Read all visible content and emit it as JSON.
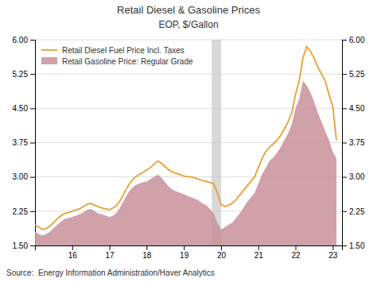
{
  "chart_data": {
    "type": "line",
    "title": "Retail Diesel & Gasoline Prices",
    "subtitle": "EOP, $/Gallon",
    "annotations": [
      "Source:  Energy Information Administration/Haver Analytics"
    ],
    "x": [
      15.0,
      15.1,
      15.2,
      15.3,
      15.4,
      15.5,
      15.6,
      15.7,
      15.8,
      15.9,
      16.0,
      16.1,
      16.2,
      16.3,
      16.4,
      16.5,
      16.6,
      16.7,
      16.8,
      16.9,
      17.0,
      17.1,
      17.2,
      17.3,
      17.4,
      17.5,
      17.6,
      17.7,
      17.8,
      17.9,
      18.0,
      18.1,
      18.2,
      18.3,
      18.4,
      18.5,
      18.6,
      18.7,
      18.8,
      18.9,
      19.0,
      19.1,
      19.2,
      19.3,
      19.4,
      19.5,
      19.6,
      19.7,
      19.8,
      19.9,
      20.0,
      20.1,
      20.2,
      20.3,
      20.4,
      20.5,
      20.6,
      20.7,
      20.8,
      20.9,
      21.0,
      21.1,
      21.2,
      21.3,
      21.4,
      21.5,
      21.6,
      21.7,
      21.8,
      21.9,
      22.0,
      22.1,
      22.2,
      22.3,
      22.4,
      22.5,
      22.6,
      22.7,
      22.8,
      22.9,
      23.0,
      23.1
    ],
    "series": [
      {
        "name": "Retail Diesel Fuel Price Incl. Taxes",
        "type": "line",
        "color": "#E8A030",
        "values": [
          1.95,
          1.9,
          1.85,
          1.87,
          1.92,
          2.0,
          2.08,
          2.15,
          2.2,
          2.22,
          2.25,
          2.28,
          2.3,
          2.35,
          2.4,
          2.42,
          2.38,
          2.35,
          2.32,
          2.3,
          2.28,
          2.32,
          2.38,
          2.5,
          2.65,
          2.8,
          2.92,
          3.0,
          3.05,
          3.1,
          3.15,
          3.2,
          3.28,
          3.35,
          3.3,
          3.22,
          3.15,
          3.1,
          3.08,
          3.05,
          3.02,
          3.0,
          3.0,
          2.98,
          2.95,
          2.92,
          2.9,
          2.88,
          2.85,
          2.65,
          2.4,
          2.35,
          2.38,
          2.42,
          2.5,
          2.6,
          2.7,
          2.8,
          2.9,
          3.0,
          3.2,
          3.4,
          3.55,
          3.65,
          3.72,
          3.8,
          3.9,
          4.05,
          4.2,
          4.4,
          4.8,
          5.1,
          5.6,
          5.85,
          5.75,
          5.6,
          5.4,
          5.25,
          5.1,
          4.8,
          4.55,
          3.8
        ]
      },
      {
        "name": "Retail Gasoline Price: Regular Grade",
        "type": "area",
        "color": "#C8909A",
        "values": [
          1.8,
          1.75,
          1.72,
          1.75,
          1.8,
          1.88,
          1.95,
          2.02,
          2.08,
          2.1,
          2.12,
          2.15,
          2.18,
          2.22,
          2.28,
          2.3,
          2.25,
          2.2,
          2.18,
          2.15,
          2.12,
          2.15,
          2.22,
          2.35,
          2.5,
          2.65,
          2.75,
          2.82,
          2.85,
          2.88,
          2.9,
          2.95,
          3.0,
          3.05,
          2.98,
          2.88,
          2.78,
          2.72,
          2.68,
          2.65,
          2.62,
          2.58,
          2.55,
          2.52,
          2.48,
          2.42,
          2.38,
          2.3,
          2.2,
          2.0,
          1.85,
          1.9,
          1.95,
          2.0,
          2.1,
          2.2,
          2.32,
          2.45,
          2.55,
          2.65,
          2.85,
          3.05,
          3.2,
          3.35,
          3.42,
          3.52,
          3.65,
          3.8,
          3.95,
          4.15,
          4.5,
          4.7,
          5.1,
          5.0,
          4.85,
          4.65,
          4.4,
          4.2,
          4.0,
          3.8,
          3.55,
          3.4
        ]
      }
    ],
    "shade": {
      "xmin": 19.75,
      "xmax": 20.0,
      "color": "#c8c8c8"
    },
    "xlim": [
      15.0,
      23.25
    ],
    "xticks": [
      16,
      17,
      18,
      19,
      20,
      21,
      22,
      23
    ],
    "ylim": [
      1.5,
      6.0
    ],
    "yticks": [
      {
        "value": 1.5,
        "label": "1.50"
      },
      2.25,
      {
        "value": 3.0,
        "label": "3.00"
      },
      3.75,
      {
        "value": 4.5,
        "label": "4.50"
      },
      5.25,
      {
        "value": 6.0,
        "label": "6.00"
      }
    ],
    "y2lim": [
      1.5,
      6.0
    ],
    "y2ticks": [
      {
        "value": 1.5,
        "label": "1.50"
      },
      2.25,
      {
        "value": 3.0,
        "label": "3.00"
      },
      3.75,
      {
        "value": 4.5,
        "label": "4.50"
      },
      5.25,
      {
        "value": 6.0,
        "label": "6.00"
      }
    ],
    "grid": true,
    "legend": "upper left"
  }
}
